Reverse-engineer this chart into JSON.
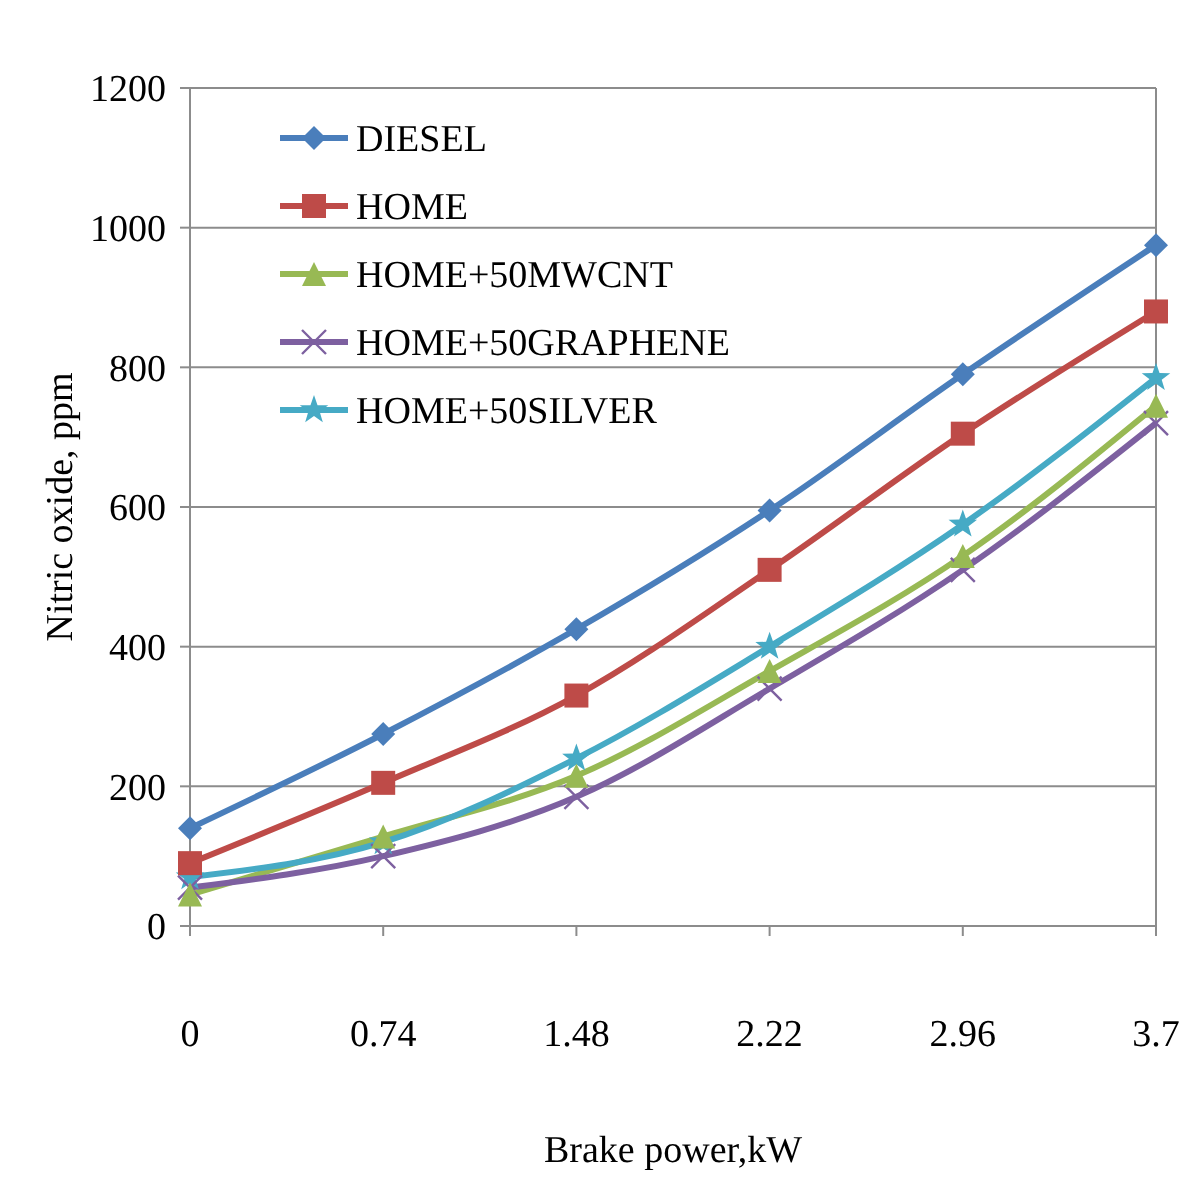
{
  "chart_data": {
    "type": "line",
    "xlabel": "Brake power,kW",
    "ylabel": "Nitric oxide, ppm",
    "x": [
      0,
      0.74,
      1.48,
      2.22,
      2.96,
      3.7
    ],
    "series": [
      {
        "name": "DIESEL",
        "color": "#4a7ebb",
        "marker": "diamond",
        "values": [
          140,
          275,
          425,
          595,
          790,
          975
        ]
      },
      {
        "name": "HOME",
        "color": "#be4b48",
        "marker": "square",
        "values": [
          90,
          205,
          330,
          510,
          705,
          880
        ]
      },
      {
        "name": "HOME+50MWCNT",
        "color": "#98b954",
        "marker": "triangle",
        "values": [
          45,
          128,
          215,
          365,
          530,
          745
        ]
      },
      {
        "name": "HOME+50GRAPHENE",
        "color": "#7d60a0",
        "marker": "cross",
        "values": [
          55,
          100,
          185,
          340,
          510,
          720
        ]
      },
      {
        "name": "HOME+50SILVER",
        "color": "#46aac5",
        "marker": "star",
        "values": [
          70,
          120,
          240,
          400,
          575,
          785
        ]
      }
    ],
    "xlim": [
      0,
      3.7
    ],
    "xticks": [
      0,
      0.74,
      1.48,
      2.22,
      2.96,
      3.7
    ],
    "ylim": [
      0,
      1200
    ],
    "yticks": [
      0,
      200,
      400,
      600,
      800,
      1000,
      1200
    ],
    "grid": "y",
    "legend": "top left"
  }
}
